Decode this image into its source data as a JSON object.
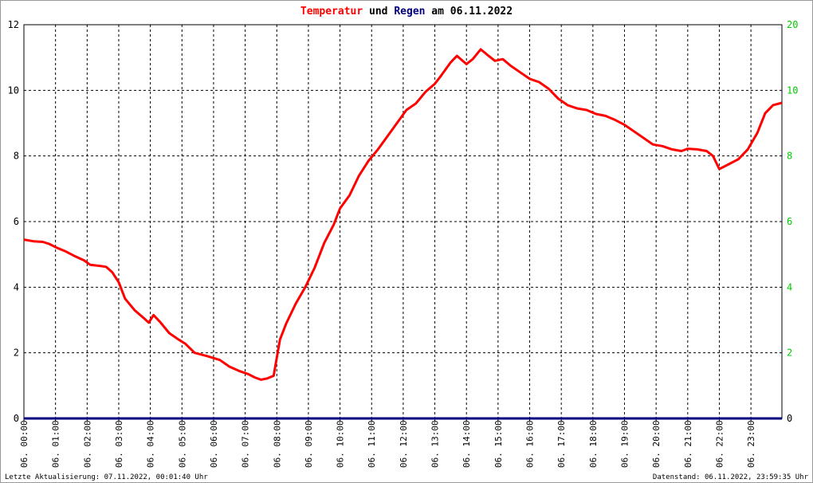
{
  "title": {
    "part1": "Temperatur",
    "part2": " und ",
    "part3": "Regen",
    "part4": " am 06.11.2022",
    "color_temp": "#ff0000",
    "color_rain": "#000080",
    "color_text": "#000000"
  },
  "footer": {
    "left": "Letzte Aktualisierung: 07.11.2022, 00:01:40 Uhr",
    "right": "Datenstand: 06.11.2022, 23:59:35 Uhr"
  },
  "chart_data": {
    "type": "line",
    "x_unit": "hours",
    "xlim": [
      0,
      23.98
    ],
    "x_tick_labels": [
      "06. 00:00",
      "06. 01:00",
      "06. 02:00",
      "06. 03:00",
      "06. 04:00",
      "06. 05:00",
      "06. 06:00",
      "06. 07:00",
      "06. 08:00",
      "06. 09:00",
      "06. 10:00",
      "06. 11:00",
      "06. 12:00",
      "06. 13:00",
      "06. 14:00",
      "06. 15:00",
      "06. 16:00",
      "06. 17:00",
      "06. 18:00",
      "06. 19:00",
      "06. 20:00",
      "06. 21:00",
      "06. 22:00",
      "06. 23:00"
    ],
    "y_left": {
      "ylim": [
        0,
        12
      ],
      "ticks": [
        "0",
        "2",
        "4",
        "6",
        "8",
        "10",
        "12"
      ],
      "color": "#000000"
    },
    "y_right": {
      "ylim": [
        0,
        20
      ],
      "ticks": [
        "0",
        "2",
        "4",
        "6",
        "8",
        "10",
        "20"
      ],
      "color": "#00cc00"
    },
    "grid": true,
    "series": [
      {
        "name": "Temperatur",
        "color": "#ff0000",
        "axis": "left",
        "points": [
          [
            0.0,
            5.45
          ],
          [
            0.3,
            5.4
          ],
          [
            0.6,
            5.38
          ],
          [
            0.8,
            5.32
          ],
          [
            1.0,
            5.22
          ],
          [
            1.3,
            5.1
          ],
          [
            1.6,
            4.95
          ],
          [
            1.9,
            4.82
          ],
          [
            2.1,
            4.68
          ],
          [
            2.4,
            4.65
          ],
          [
            2.6,
            4.62
          ],
          [
            2.8,
            4.45
          ],
          [
            3.0,
            4.15
          ],
          [
            3.2,
            3.65
          ],
          [
            3.5,
            3.3
          ],
          [
            3.8,
            3.05
          ],
          [
            3.95,
            2.92
          ],
          [
            4.1,
            3.15
          ],
          [
            4.3,
            2.95
          ],
          [
            4.6,
            2.6
          ],
          [
            4.9,
            2.4
          ],
          [
            5.1,
            2.28
          ],
          [
            5.4,
            2.0
          ],
          [
            5.8,
            1.9
          ],
          [
            6.2,
            1.78
          ],
          [
            6.5,
            1.58
          ],
          [
            6.8,
            1.45
          ],
          [
            7.1,
            1.35
          ],
          [
            7.3,
            1.25
          ],
          [
            7.5,
            1.18
          ],
          [
            7.7,
            1.22
          ],
          [
            7.9,
            1.3
          ],
          [
            8.1,
            2.4
          ],
          [
            8.3,
            2.9
          ],
          [
            8.6,
            3.5
          ],
          [
            8.9,
            4.0
          ],
          [
            9.2,
            4.6
          ],
          [
            9.5,
            5.35
          ],
          [
            9.8,
            5.9
          ],
          [
            10.0,
            6.4
          ],
          [
            10.3,
            6.8
          ],
          [
            10.6,
            7.4
          ],
          [
            10.9,
            7.85
          ],
          [
            11.2,
            8.2
          ],
          [
            11.5,
            8.6
          ],
          [
            11.8,
            9.0
          ],
          [
            12.1,
            9.4
          ],
          [
            12.4,
            9.6
          ],
          [
            12.7,
            9.95
          ],
          [
            13.0,
            10.2
          ],
          [
            13.2,
            10.45
          ],
          [
            13.5,
            10.85
          ],
          [
            13.7,
            11.05
          ],
          [
            14.0,
            10.8
          ],
          [
            14.2,
            10.95
          ],
          [
            14.45,
            11.25
          ],
          [
            14.7,
            11.05
          ],
          [
            14.9,
            10.9
          ],
          [
            15.15,
            10.95
          ],
          [
            15.4,
            10.75
          ],
          [
            15.7,
            10.55
          ],
          [
            16.0,
            10.35
          ],
          [
            16.3,
            10.25
          ],
          [
            16.6,
            10.05
          ],
          [
            16.9,
            9.75
          ],
          [
            17.2,
            9.55
          ],
          [
            17.5,
            9.45
          ],
          [
            17.8,
            9.4
          ],
          [
            18.1,
            9.28
          ],
          [
            18.4,
            9.22
          ],
          [
            18.7,
            9.1
          ],
          [
            19.0,
            8.95
          ],
          [
            19.3,
            8.75
          ],
          [
            19.6,
            8.55
          ],
          [
            19.9,
            8.35
          ],
          [
            20.2,
            8.3
          ],
          [
            20.5,
            8.2
          ],
          [
            20.8,
            8.15
          ],
          [
            21.0,
            8.22
          ],
          [
            21.3,
            8.2
          ],
          [
            21.6,
            8.15
          ],
          [
            21.8,
            8.0
          ],
          [
            22.0,
            7.6
          ],
          [
            22.3,
            7.75
          ],
          [
            22.6,
            7.9
          ],
          [
            22.9,
            8.2
          ],
          [
            23.2,
            8.7
          ],
          [
            23.45,
            9.3
          ],
          [
            23.7,
            9.55
          ],
          [
            23.98,
            9.62
          ]
        ]
      },
      {
        "name": "Regen",
        "color": "#000080",
        "axis": "right",
        "points": [
          [
            0,
            0
          ],
          [
            23.98,
            0
          ]
        ]
      }
    ]
  }
}
